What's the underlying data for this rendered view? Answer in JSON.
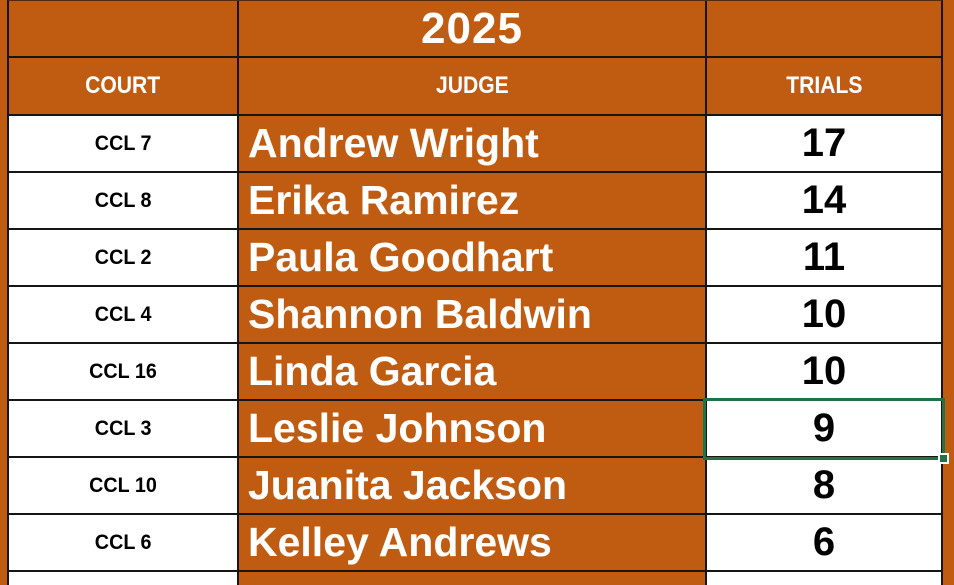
{
  "title": "2025",
  "columns": {
    "court": "COURT",
    "judge": "JUDGE",
    "trials": "TRIALS"
  },
  "rows": [
    {
      "court": "CCL 7",
      "judge": "Andrew Wright",
      "trials": "17"
    },
    {
      "court": "CCL 8",
      "judge": "Erika Ramirez",
      "trials": "14"
    },
    {
      "court": "CCL 2",
      "judge": "Paula Goodhart",
      "trials": "11"
    },
    {
      "court": "CCL 4",
      "judge": "Shannon Baldwin",
      "trials": "10"
    },
    {
      "court": "CCL 16",
      "judge": "Linda Garcia",
      "trials": "10"
    },
    {
      "court": "CCL 3",
      "judge": "Leslie Johnson",
      "trials": "9"
    },
    {
      "court": "CCL 10",
      "judge": "Juanita Jackson",
      "trials": "8"
    },
    {
      "court": "CCL 6",
      "judge": "Kelley Andrews",
      "trials": "6"
    }
  ],
  "selection": {
    "column": "TRIALS",
    "row_court": "CCL 3",
    "value": "9"
  },
  "colors": {
    "orange": "#C05C12",
    "cell_white": "#FFFFFF",
    "grid_black": "#161616",
    "selection_green": "#217346",
    "text_white": "#FFFFFF",
    "text_black": "#000000"
  }
}
